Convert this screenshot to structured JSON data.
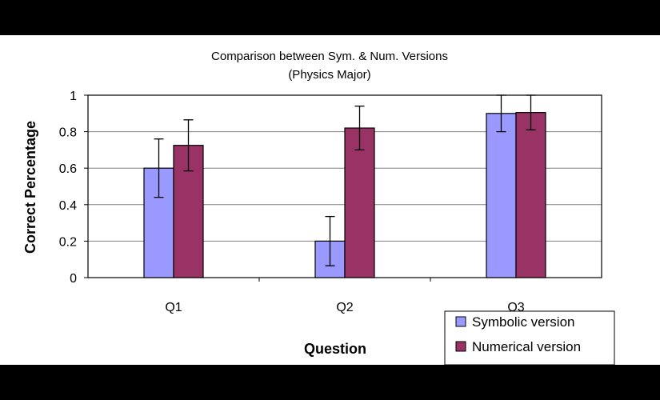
{
  "chart_data": {
    "type": "bar",
    "title": "Comparison between Sym. & Num. Versions",
    "subtitle": "(Physics Major)",
    "xlabel": "Question",
    "ylabel": "Correct Percentage",
    "categories": [
      "Q1",
      "Q2",
      "Q3"
    ],
    "ylim": [
      0,
      1
    ],
    "yticks": [
      "0",
      "0.2",
      "0.4",
      "0.6",
      "0.8",
      "1"
    ],
    "grid": true,
    "legend_position": "bottom-right",
    "series": [
      {
        "name": "Symbolic version",
        "color": "#9999ff",
        "values": [
          0.6,
          0.2,
          0.9
        ],
        "errors": [
          0.16,
          0.135,
          0.1
        ]
      },
      {
        "name": "Numerical version",
        "color": "#993366",
        "values": [
          0.725,
          0.82,
          0.905
        ],
        "errors": [
          0.14,
          0.12,
          0.095
        ]
      }
    ]
  }
}
